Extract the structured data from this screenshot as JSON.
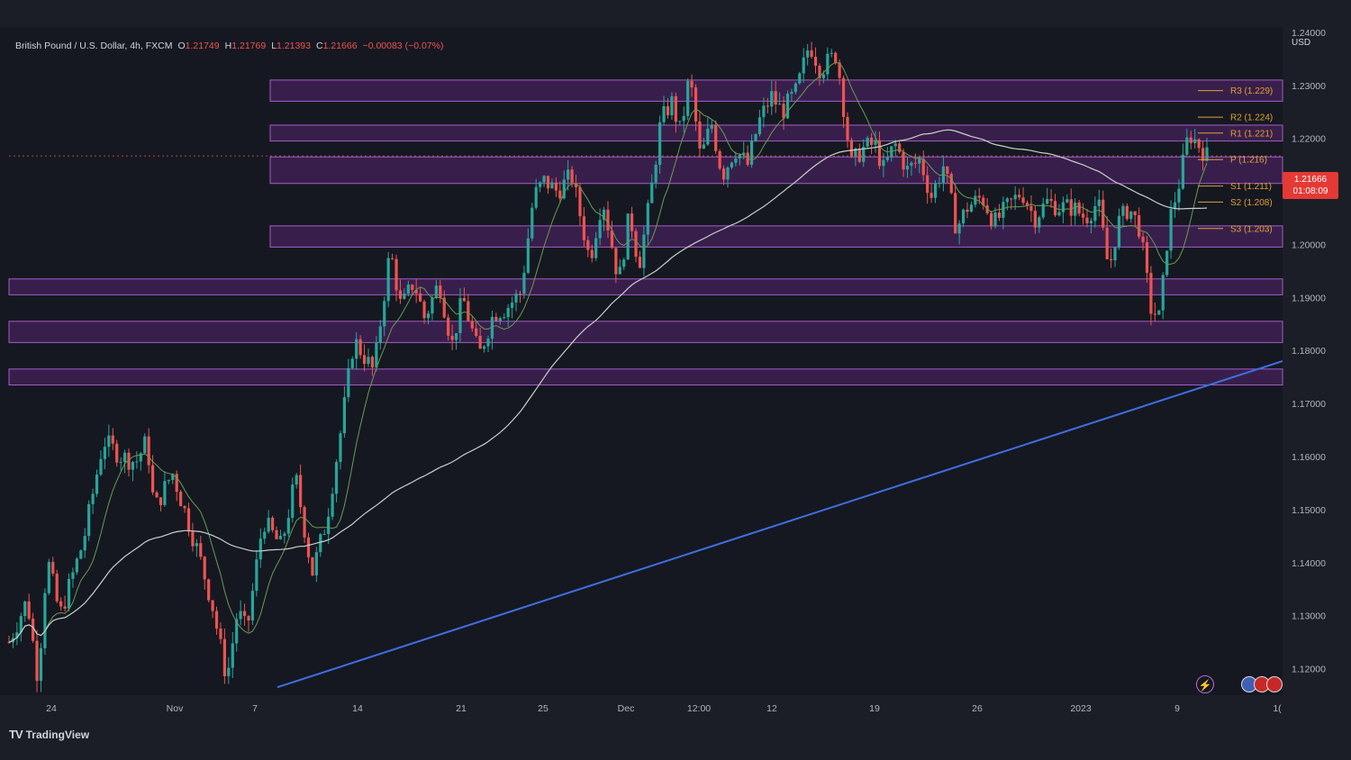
{
  "header": {
    "title": "British Pound / U.S. Dollar, 4h, FXCM",
    "open_label": "O",
    "open": "1.21749",
    "high_label": "H",
    "high": "1.21769",
    "low_label": "L",
    "low": "1.21393",
    "close_label": "C",
    "close": "1.21666",
    "change": "−0.00083 (−0.07%)"
  },
  "currency": "USD",
  "last_price": {
    "value": "1.21666",
    "countdown": "01:08:09"
  },
  "brand": {
    "logo": "TV",
    "name": "TradingView"
  },
  "colors": {
    "background": "#1b1e27",
    "up_candle": "#26a69a",
    "down_candle": "#ef5350",
    "zone": "#7b2d9a",
    "trendline": "#3f6fe0",
    "ma_fast": "#6a9a55",
    "ma_slow": "#c8d0c8",
    "pivot_level": "#e0a030"
  },
  "chart_data": {
    "type": "candlestick",
    "symbol": "British Pound / U.S. Dollar",
    "timeframe": "4h",
    "ylim": [
      1.115,
      1.241
    ],
    "y_ticks": [
      "1.24000",
      "1.23000",
      "1.22000",
      "1.21000",
      "1.20000",
      "1.19000",
      "1.18000",
      "1.17000",
      "1.16000",
      "1.15000",
      "1.14000",
      "1.13000",
      "1.12000"
    ],
    "x_ticks": [
      "24",
      "Nov",
      "7",
      "14",
      "21",
      "25",
      "Dec",
      "12:00",
      "12",
      "19",
      "26",
      "2023",
      "9",
      "1("
    ],
    "price_path": [
      [
        0,
        1.125
      ],
      [
        1,
        1.133
      ],
      [
        1.6,
        1.118
      ],
      [
        2.1,
        1.141
      ],
      [
        2.8,
        1.13
      ],
      [
        4.1,
        1.144
      ],
      [
        5.2,
        1.163
      ],
      [
        6.2,
        1.16
      ],
      [
        7.0,
        1.159
      ],
      [
        7.6,
        1.163
      ],
      [
        8.0,
        1.15
      ],
      [
        9.0,
        1.157
      ],
      [
        10.5,
        1.141
      ],
      [
        11.2,
        1.132
      ],
      [
        12.0,
        1.118
      ],
      [
        12.6,
        1.131
      ],
      [
        13.1,
        1.127
      ],
      [
        14.0,
        1.148
      ],
      [
        15.0,
        1.143
      ],
      [
        15.8,
        1.156
      ],
      [
        16.7,
        1.138
      ],
      [
        17.5,
        1.148
      ],
      [
        18.2,
        1.163
      ],
      [
        19.0,
        1.182
      ],
      [
        20.1,
        1.176
      ],
      [
        21.0,
        1.199
      ],
      [
        21.6,
        1.188
      ],
      [
        22.3,
        1.193
      ],
      [
        22.9,
        1.186
      ],
      [
        23.7,
        1.193
      ],
      [
        24.4,
        1.181
      ],
      [
        25.0,
        1.19
      ],
      [
        25.9,
        1.179
      ],
      [
        26.7,
        1.187
      ],
      [
        27.4,
        1.188
      ],
      [
        28.2,
        1.191
      ],
      [
        28.9,
        1.209
      ],
      [
        29.5,
        1.212
      ],
      [
        30.2,
        1.21
      ],
      [
        31.0,
        1.213
      ],
      [
        32.0,
        1.197
      ],
      [
        32.7,
        1.209
      ],
      [
        33.6,
        1.193
      ],
      [
        34.2,
        1.206
      ],
      [
        34.7,
        1.196
      ],
      [
        35.3,
        1.208
      ],
      [
        35.9,
        1.223
      ],
      [
        36.5,
        1.227
      ],
      [
        37.0,
        1.221
      ],
      [
        37.5,
        1.232
      ],
      [
        38.1,
        1.216
      ],
      [
        38.7,
        1.223
      ],
      [
        39.3,
        1.213
      ],
      [
        40.0,
        1.218
      ],
      [
        40.7,
        1.215
      ],
      [
        41.3,
        1.223
      ],
      [
        42.0,
        1.228
      ],
      [
        42.6,
        1.225
      ],
      [
        43.4,
        1.229
      ],
      [
        44.1,
        1.238
      ],
      [
        44.7,
        1.233
      ],
      [
        45.6,
        1.236
      ],
      [
        46.4,
        1.215
      ],
      [
        47.0,
        1.218
      ],
      [
        47.7,
        1.219
      ],
      [
        48.2,
        1.214
      ],
      [
        48.8,
        1.219
      ],
      [
        49.5,
        1.214
      ],
      [
        50.2,
        1.216
      ],
      [
        50.8,
        1.209
      ],
      [
        51.5,
        1.215
      ],
      [
        52.2,
        1.203
      ],
      [
        52.8,
        1.207
      ],
      [
        53.6,
        1.209
      ],
      [
        54.3,
        1.204
      ],
      [
        55.0,
        1.207
      ],
      [
        55.8,
        1.21
      ],
      [
        56.5,
        1.205
      ],
      [
        57.2,
        1.208
      ],
      [
        57.9,
        1.207
      ],
      [
        58.6,
        1.207
      ],
      [
        59.3,
        1.205
      ],
      [
        60.0,
        1.208
      ],
      [
        60.6,
        1.195
      ],
      [
        61.1,
        1.204
      ],
      [
        61.7,
        1.207
      ],
      [
        62.3,
        1.203
      ],
      [
        62.9,
        1.188
      ],
      [
        63.4,
        1.186
      ],
      [
        63.9,
        1.204
      ],
      [
        64.5,
        1.212
      ],
      [
        65.0,
        1.221
      ],
      [
        65.5,
        1.219
      ],
      [
        66.0,
        1.2167
      ]
    ],
    "series": [
      {
        "name": "",
        "kind": "fast moving average"
      },
      {
        "name": "",
        "kind": "slow moving average"
      }
    ],
    "pivot_levels": [
      {
        "label": "R3 (1.229)",
        "value": 1.229
      },
      {
        "label": "R2 (1.224)",
        "value": 1.224
      },
      {
        "label": "R1 (1.221)",
        "value": 1.221
      },
      {
        "label": "P (1.216)",
        "value": 1.216
      },
      {
        "label": "S1 (1.211)",
        "value": 1.211
      },
      {
        "label": "S2 (1.208)",
        "value": 1.208
      },
      {
        "label": "S3 (1.203)",
        "value": 1.203
      }
    ],
    "zones": [
      {
        "top": 1.231,
        "bottom": 1.227,
        "from": "21 Oct",
        "to": "latest"
      },
      {
        "top": 1.2225,
        "bottom": 1.2195,
        "from": "21 Oct",
        "to": "latest"
      },
      {
        "top": 1.2165,
        "bottom": 1.2115,
        "from": "21 Oct",
        "to": "latest"
      },
      {
        "top": 1.2035,
        "bottom": 1.1995,
        "from": "21 Oct",
        "to": "latest"
      },
      {
        "top": 1.1935,
        "bottom": 1.1905,
        "from": "start",
        "to": "latest"
      },
      {
        "top": 1.1855,
        "bottom": 1.1815,
        "from": "start",
        "to": "latest"
      },
      {
        "top": 1.1765,
        "bottom": 1.1735,
        "from": "start",
        "to": "latest"
      }
    ],
    "trendline": {
      "from": {
        "x": "4 Nov",
        "y": 1.1165
      },
      "to": {
        "x": "latest",
        "y": 1.178
      }
    },
    "legend": "none",
    "grid": false
  }
}
